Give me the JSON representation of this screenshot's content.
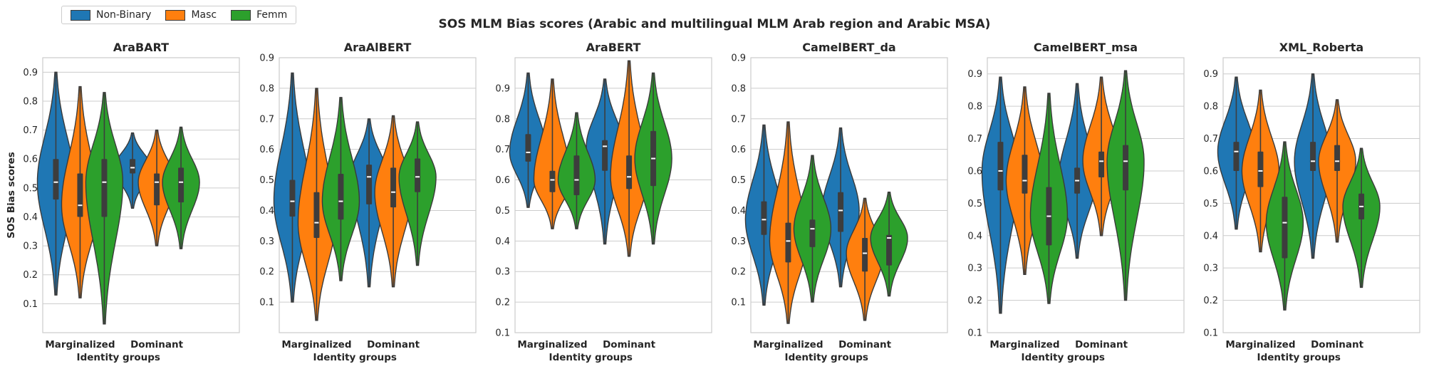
{
  "title": "SOS MLM Bias scores (Arabic and multilingual MLM Arab region and Arabic MSA)",
  "legend": [
    {
      "label": "Non-Binary",
      "color": "#1f77b4"
    },
    {
      "label": "Masc",
      "color": "#ff7f0e"
    },
    {
      "label": "Femm",
      "color": "#2ca02c"
    }
  ],
  "chart_data": [
    {
      "type": "violin",
      "title": "AraBART",
      "xlabel": "Identity groups",
      "ylabel": "SOS Bias scores",
      "categories": [
        "Marginalized",
        "Dominant"
      ],
      "ylim": [
        0.0,
        0.95
      ],
      "yticks": [
        0.1,
        0.2,
        0.3,
        0.4,
        0.5,
        0.6,
        0.7,
        0.8,
        0.9
      ],
      "series": [
        {
          "name": "Non-Binary",
          "groups": [
            {
              "category": "Marginalized",
              "min": 0.13,
              "q1": 0.46,
              "median": 0.52,
              "q3": 0.6,
              "max": 0.9,
              "peak": 0.52
            },
            {
              "category": "Dominant",
              "min": 0.43,
              "q1": 0.55,
              "median": 0.57,
              "q3": 0.6,
              "max": 0.69,
              "peak": 0.57
            }
          ]
        },
        {
          "name": "Masc",
          "groups": [
            {
              "category": "Marginalized",
              "min": 0.12,
              "q1": 0.4,
              "median": 0.44,
              "q3": 0.55,
              "max": 0.85,
              "peak": 0.44
            },
            {
              "category": "Dominant",
              "min": 0.3,
              "q1": 0.44,
              "median": 0.52,
              "q3": 0.55,
              "max": 0.7,
              "peak": 0.52
            }
          ]
        },
        {
          "name": "Femm",
          "groups": [
            {
              "category": "Marginalized",
              "min": 0.03,
              "q1": 0.4,
              "median": 0.52,
              "q3": 0.6,
              "max": 0.83,
              "peak": 0.52
            },
            {
              "category": "Dominant",
              "min": 0.29,
              "q1": 0.45,
              "median": 0.52,
              "q3": 0.57,
              "max": 0.71,
              "peak": 0.52
            }
          ]
        }
      ]
    },
    {
      "type": "violin",
      "title": "AraAlBERT",
      "xlabel": "Identity groups",
      "ylabel": "",
      "categories": [
        "Marginalized",
        "Dominant"
      ],
      "ylim": [
        0.0,
        0.9
      ],
      "yticks": [
        0.1,
        0.2,
        0.3,
        0.4,
        0.5,
        0.6,
        0.7,
        0.8,
        0.9
      ],
      "series": [
        {
          "name": "Non-Binary",
          "groups": [
            {
              "category": "Marginalized",
              "min": 0.1,
              "q1": 0.38,
              "median": 0.43,
              "q3": 0.5,
              "max": 0.85,
              "peak": 0.43
            },
            {
              "category": "Dominant",
              "min": 0.15,
              "q1": 0.42,
              "median": 0.51,
              "q3": 0.55,
              "max": 0.7,
              "peak": 0.51
            }
          ]
        },
        {
          "name": "Masc",
          "groups": [
            {
              "category": "Marginalized",
              "min": 0.04,
              "q1": 0.31,
              "median": 0.36,
              "q3": 0.46,
              "max": 0.8,
              "peak": 0.36
            },
            {
              "category": "Dominant",
              "min": 0.15,
              "q1": 0.41,
              "median": 0.46,
              "q3": 0.54,
              "max": 0.71,
              "peak": 0.46
            }
          ]
        },
        {
          "name": "Femm",
          "groups": [
            {
              "category": "Marginalized",
              "min": 0.17,
              "q1": 0.37,
              "median": 0.43,
              "q3": 0.52,
              "max": 0.77,
              "peak": 0.43
            },
            {
              "category": "Dominant",
              "min": 0.22,
              "q1": 0.46,
              "median": 0.51,
              "q3": 0.57,
              "max": 0.69,
              "peak": 0.51
            }
          ]
        }
      ]
    },
    {
      "type": "violin",
      "title": "AraBERT",
      "xlabel": "Identity groups",
      "ylabel": "",
      "categories": [
        "Marginalized",
        "Dominant"
      ],
      "ylim": [
        0.1,
        1.0
      ],
      "yticks": [
        0.1,
        0.2,
        0.3,
        0.4,
        0.5,
        0.6,
        0.7,
        0.8,
        0.9
      ],
      "series": [
        {
          "name": "Non-Binary",
          "groups": [
            {
              "category": "Marginalized",
              "min": 0.51,
              "q1": 0.66,
              "median": 0.69,
              "q3": 0.75,
              "max": 0.95,
              "peak": 0.69
            },
            {
              "category": "Dominant",
              "min": 0.39,
              "q1": 0.63,
              "median": 0.71,
              "q3": 0.73,
              "max": 0.93,
              "peak": 0.71
            }
          ]
        },
        {
          "name": "Masc",
          "groups": [
            {
              "category": "Marginalized",
              "min": 0.44,
              "q1": 0.56,
              "median": 0.6,
              "q3": 0.63,
              "max": 0.93,
              "peak": 0.6
            },
            {
              "category": "Dominant",
              "min": 0.35,
              "q1": 0.57,
              "median": 0.61,
              "q3": 0.68,
              "max": 0.99,
              "peak": 0.61
            }
          ]
        },
        {
          "name": "Femm",
          "groups": [
            {
              "category": "Marginalized",
              "min": 0.44,
              "q1": 0.55,
              "median": 0.6,
              "q3": 0.68,
              "max": 0.82,
              "peak": 0.6
            },
            {
              "category": "Dominant",
              "min": 0.39,
              "q1": 0.58,
              "median": 0.67,
              "q3": 0.76,
              "max": 0.95,
              "peak": 0.67
            }
          ]
        }
      ]
    },
    {
      "type": "violin",
      "title": "CamelBERT_da",
      "xlabel": "Identity groups",
      "ylabel": "",
      "categories": [
        "Marginalized",
        "Dominant"
      ],
      "ylim": [
        0.0,
        0.9
      ],
      "yticks": [
        0.1,
        0.2,
        0.3,
        0.4,
        0.5,
        0.6,
        0.7,
        0.8,
        0.9
      ],
      "series": [
        {
          "name": "Non-Binary",
          "groups": [
            {
              "category": "Marginalized",
              "min": 0.09,
              "q1": 0.32,
              "median": 0.37,
              "q3": 0.43,
              "max": 0.68,
              "peak": 0.37
            },
            {
              "category": "Dominant",
              "min": 0.15,
              "q1": 0.33,
              "median": 0.4,
              "q3": 0.46,
              "max": 0.67,
              "peak": 0.4
            }
          ]
        },
        {
          "name": "Masc",
          "groups": [
            {
              "category": "Marginalized",
              "min": 0.03,
              "q1": 0.23,
              "median": 0.3,
              "q3": 0.36,
              "max": 0.69,
              "peak": 0.3
            },
            {
              "category": "Dominant",
              "min": 0.04,
              "q1": 0.2,
              "median": 0.26,
              "q3": 0.31,
              "max": 0.44,
              "peak": 0.26
            }
          ]
        },
        {
          "name": "Femm",
          "groups": [
            {
              "category": "Marginalized",
              "min": 0.1,
              "q1": 0.28,
              "median": 0.34,
              "q3": 0.37,
              "max": 0.58,
              "peak": 0.34
            },
            {
              "category": "Dominant",
              "min": 0.12,
              "q1": 0.22,
              "median": 0.31,
              "q3": 0.32,
              "max": 0.46,
              "peak": 0.31
            }
          ]
        }
      ]
    },
    {
      "type": "violin",
      "title": "CamelBERT_msa",
      "xlabel": "Identity groups",
      "ylabel": "",
      "categories": [
        "Marginalized",
        "Dominant"
      ],
      "ylim": [
        0.1,
        0.95
      ],
      "yticks": [
        0.1,
        0.2,
        0.3,
        0.4,
        0.5,
        0.6,
        0.7,
        0.8,
        0.9
      ],
      "series": [
        {
          "name": "Non-Binary",
          "groups": [
            {
              "category": "Marginalized",
              "min": 0.16,
              "q1": 0.54,
              "median": 0.6,
              "q3": 0.69,
              "max": 0.89,
              "peak": 0.6
            },
            {
              "category": "Dominant",
              "min": 0.33,
              "q1": 0.53,
              "median": 0.57,
              "q3": 0.61,
              "max": 0.87,
              "peak": 0.57
            }
          ]
        },
        {
          "name": "Masc",
          "groups": [
            {
              "category": "Marginalized",
              "min": 0.28,
              "q1": 0.53,
              "median": 0.57,
              "q3": 0.65,
              "max": 0.86,
              "peak": 0.57
            },
            {
              "category": "Dominant",
              "min": 0.4,
              "q1": 0.58,
              "median": 0.63,
              "q3": 0.66,
              "max": 0.89,
              "peak": 0.63
            }
          ]
        },
        {
          "name": "Femm",
          "groups": [
            {
              "category": "Marginalized",
              "min": 0.19,
              "q1": 0.37,
              "median": 0.46,
              "q3": 0.55,
              "max": 0.84,
              "peak": 0.46
            },
            {
              "category": "Dominant",
              "min": 0.2,
              "q1": 0.54,
              "median": 0.63,
              "q3": 0.68,
              "max": 0.91,
              "peak": 0.63
            }
          ]
        }
      ]
    },
    {
      "type": "violin",
      "title": "XML_Roberta",
      "xlabel": "Identity groups",
      "ylabel": "",
      "categories": [
        "Marginalized",
        "Dominant"
      ],
      "ylim": [
        0.1,
        0.95
      ],
      "yticks": [
        0.1,
        0.2,
        0.3,
        0.4,
        0.5,
        0.6,
        0.7,
        0.8,
        0.9
      ],
      "series": [
        {
          "name": "Non-Binary",
          "groups": [
            {
              "category": "Marginalized",
              "min": 0.42,
              "q1": 0.6,
              "median": 0.66,
              "q3": 0.69,
              "max": 0.89,
              "peak": 0.66
            },
            {
              "category": "Dominant",
              "min": 0.33,
              "q1": 0.6,
              "median": 0.63,
              "q3": 0.69,
              "max": 0.9,
              "peak": 0.63
            }
          ]
        },
        {
          "name": "Masc",
          "groups": [
            {
              "category": "Marginalized",
              "min": 0.35,
              "q1": 0.55,
              "median": 0.6,
              "q3": 0.66,
              "max": 0.85,
              "peak": 0.6
            },
            {
              "category": "Dominant",
              "min": 0.38,
              "q1": 0.6,
              "median": 0.63,
              "q3": 0.68,
              "max": 0.82,
              "peak": 0.63
            }
          ]
        },
        {
          "name": "Femm",
          "groups": [
            {
              "category": "Marginalized",
              "min": 0.17,
              "q1": 0.33,
              "median": 0.44,
              "q3": 0.52,
              "max": 0.69,
              "peak": 0.44
            },
            {
              "category": "Dominant",
              "min": 0.24,
              "q1": 0.45,
              "median": 0.49,
              "q3": 0.53,
              "max": 0.67,
              "peak": 0.49
            }
          ]
        }
      ]
    }
  ]
}
